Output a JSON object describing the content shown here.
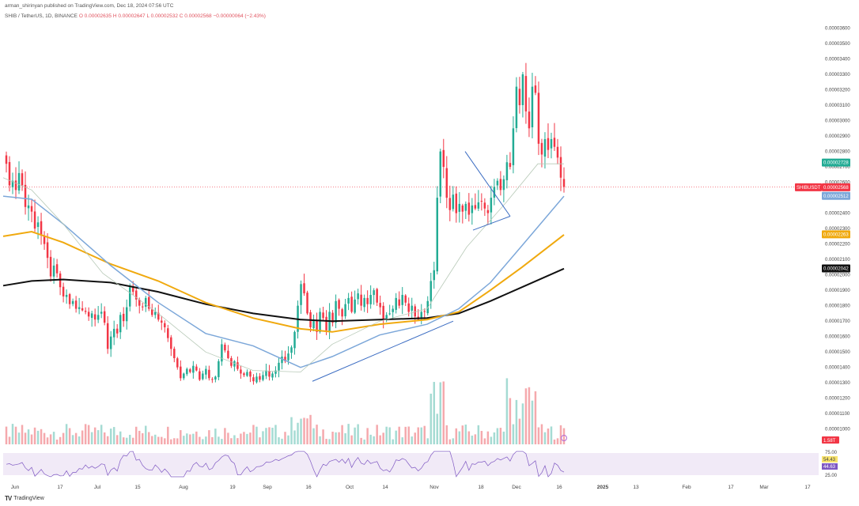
{
  "header": {
    "publisher": "arman_shirinyan published on TradingView.com, Dec 18, 2024 07:56 UTC",
    "symbol": "SHIB / TetherUS, 1D, BINANCE",
    "ohlc": "O 0.00002635  H 0.00002647  L 0.00002532  C 0.00002568  −0.00000064 (−2.43%)"
  },
  "footer": {
    "logo": "TV",
    "brand": "TradingView"
  },
  "colors": {
    "bull": "#22ab94",
    "bear": "#f23645",
    "vol_bull": "#a5dbd3",
    "vol_bear": "#f5a9ad",
    "ma_black": "#111111",
    "ma_orange": "#f0a90e",
    "ma_blue": "#7ca7d9",
    "ma_thin": "#b7c9b7",
    "trendline": "#3b6cc2",
    "price_line": "#f23645"
  },
  "chart_data": {
    "type": "candlestick",
    "y_axis": {
      "ticks": [
        "0.00003600",
        "0.00003500",
        "0.00003400",
        "0.00003300",
        "0.00003200",
        "0.00003100",
        "0.00003000",
        "0.00002900",
        "0.00002800",
        "0.00002700",
        "0.00002600",
        "0.00002500",
        "0.00002400",
        "0.00002300",
        "0.00002200",
        "0.00002100",
        "0.00002000",
        "0.00001900",
        "0.00001800",
        "0.00001700",
        "0.00001600",
        "0.00001500",
        "0.00001400",
        "0.00001300",
        "0.00001200",
        "0.00001100",
        "0.00001000"
      ],
      "ylim": [
        9.78e-06,
        3.618e-05
      ]
    },
    "x_axis": {
      "ticks": [
        "Jun",
        "17",
        "Jul",
        "15",
        "Aug",
        "19",
        "Sep",
        "16",
        "Oct",
        "14",
        "Nov",
        "18",
        "Dec",
        "16",
        "2025",
        "13",
        "Feb",
        "17",
        "Mar",
        "17"
      ]
    },
    "closes": [
      2.72e-05,
      2.58e-05,
      2.61e-05,
      2.55e-05,
      2.66e-05,
      2.58e-05,
      2.44e-05,
      2.45e-05,
      2.41e-05,
      2.3e-05,
      2.34e-05,
      2.26e-05,
      2.2e-05,
      2.11e-05,
      1.99e-05,
      2.06e-05,
      2.01e-05,
      1.92e-05,
      1.86e-05,
      1.87e-05,
      1.81e-05,
      1.83e-05,
      1.78e-05,
      1.79e-05,
      1.77e-05,
      1.76e-05,
      1.73e-05,
      1.75e-05,
      1.71e-05,
      1.74e-05,
      1.76e-05,
      1.69e-05,
      1.52e-05,
      1.6e-05,
      1.65e-05,
      1.62e-05,
      1.74e-05,
      1.7e-05,
      1.79e-05,
      1.92e-05,
      1.89e-05,
      1.84e-05,
      1.8e-05,
      1.79e-05,
      1.85e-05,
      1.78e-05,
      1.74e-05,
      1.76e-05,
      1.71e-05,
      1.69e-05,
      1.66e-05,
      1.59e-05,
      1.52e-05,
      1.46e-05,
      1.4e-05,
      1.33e-05,
      1.36e-05,
      1.39e-05,
      1.37e-05,
      1.41e-05,
      1.38e-05,
      1.32e-05,
      1.36e-05,
      1.39e-05,
      1.33e-05,
      1.32e-05,
      1.34e-05,
      1.44e-05,
      1.55e-05,
      1.51e-05,
      1.46e-05,
      1.41e-05,
      1.44e-05,
      1.39e-05,
      1.36e-05,
      1.35e-05,
      1.37e-05,
      1.34e-05,
      1.31e-05,
      1.34e-05,
      1.32e-05,
      1.35e-05,
      1.38e-05,
      1.34e-05,
      1.36e-05,
      1.38e-05,
      1.43e-05,
      1.47e-05,
      1.44e-05,
      1.49e-05,
      1.53e-05,
      1.63e-05,
      1.8e-05,
      1.94e-05,
      1.88e-05,
      1.75e-05,
      1.66e-05,
      1.71e-05,
      1.63e-05,
      1.76e-05,
      1.72e-05,
      1.64e-05,
      1.76e-05,
      1.69e-05,
      1.83e-05,
      1.78e-05,
      1.73e-05,
      1.81e-05,
      1.85e-05,
      1.76e-05,
      1.84e-05,
      1.88e-05,
      1.8e-05,
      1.85e-05,
      1.81e-05,
      1.87e-05,
      1.9e-05,
      1.82e-05,
      1.79e-05,
      1.71e-05,
      1.74e-05,
      1.75e-05,
      1.78e-05,
      1.85e-05,
      1.8e-05,
      1.87e-05,
      1.82e-05,
      1.76e-05,
      1.8e-05,
      1.73e-05,
      1.71e-05,
      1.76e-05,
      1.76e-05,
      1.83e-05,
      1.96e-05,
      2.03e-05,
      2.5e-05,
      2.8e-05,
      2.7e-05,
      2.5e-05,
      2.42e-05,
      2.52e-05,
      2.4e-05,
      2.46e-05,
      2.41e-05,
      2.46e-05,
      2.39e-05,
      2.45e-05,
      2.43e-05,
      2.47e-05,
      2.48e-05,
      2.43e-05,
      2.4e-05,
      2.5e-05,
      2.57e-05,
      2.61e-05,
      2.55e-05,
      2.62e-05,
      2.73e-05,
      2.7e-05,
      2.95e-05,
      3.22e-05,
      3.1e-05,
      3.3e-05,
      3.06e-05,
      2.95e-05,
      3.22e-05,
      3.18e-05,
      2.85e-05,
      2.78e-05,
      2.88e-05,
      2.81e-05,
      2.88e-05,
      2.83e-05,
      2.76e-05,
      2.63e-05,
      2.57e-05
    ],
    "moving_averages": [
      {
        "color": "black",
        "values": [
          [
            1.93e-05,
            1.92e-05
          ],
          [
            1.98e-05,
            1.98e-05
          ],
          [
            1.685e-05,
            1.7e-05
          ],
          [
            1.72e-05,
            1.74e-05
          ],
          [
            2.04e-05,
            2.05e-05
          ]
        ]
      },
      {
        "color": "orange",
        "last": 2.263e-05
      },
      {
        "color": "blue",
        "last": 2.512e-05
      }
    ],
    "price_labels": [
      {
        "value": "0.00002728",
        "color": "#22ab94"
      },
      {
        "value": "0.00002568",
        "color": "#f23645",
        "tag": "SHIBUSDT"
      },
      {
        "value": "0.00002512",
        "color": "#7ca7d9"
      },
      {
        "value": "0.00002263",
        "color": "#f0a90e"
      },
      {
        "value": "0.00002042",
        "color": "#111111"
      }
    ],
    "volume_label": "1.58T",
    "rsi": {
      "ticks": [
        "75.00",
        "25.00"
      ],
      "value_a": "54.43",
      "value_b": "44.63"
    }
  }
}
